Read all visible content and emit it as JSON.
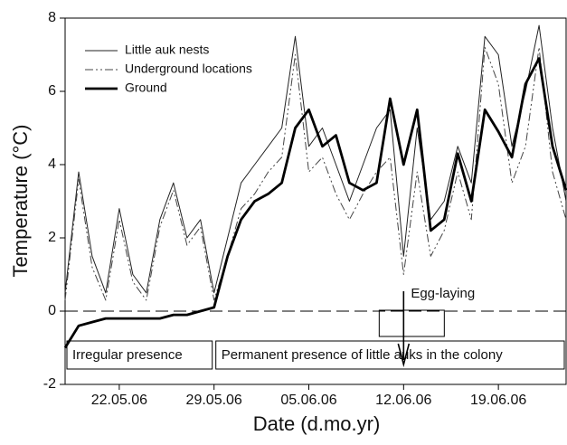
{
  "chart_data": {
    "type": "line",
    "x_label": "Date (d.mo.yr)",
    "y_label": "Temperature (°C)",
    "x": [
      "18.05.06",
      "19.05.06",
      "20.05.06",
      "21.05.06",
      "22.05.06",
      "23.05.06",
      "24.05.06",
      "25.05.06",
      "26.05.06",
      "27.05.06",
      "28.05.06",
      "29.05.06",
      "30.05.06",
      "31.05.06",
      "01.06.06",
      "02.06.06",
      "03.06.06",
      "04.06.06",
      "05.06.06",
      "06.06.06",
      "07.06.06",
      "08.06.06",
      "09.06.06",
      "10.06.06",
      "11.06.06",
      "12.06.06",
      "13.06.06",
      "14.06.06",
      "15.06.06",
      "16.06.06",
      "17.06.06",
      "18.06.06",
      "19.06.06",
      "20.06.06",
      "21.06.06",
      "22.06.06",
      "23.06.06",
      "24.06.06"
    ],
    "series": [
      {
        "name": "Little auk nests",
        "color": "#222222",
        "linestyle": "solid",
        "linewidth": 1,
        "values": [
          0.5,
          3.8,
          1.5,
          0.5,
          2.8,
          1.0,
          0.5,
          2.5,
          3.5,
          2.0,
          2.5,
          0.5,
          2.0,
          3.5,
          4.0,
          4.5,
          5.0,
          7.5,
          4.5,
          5.0,
          4.0,
          3.0,
          4.0,
          5.0,
          5.5,
          1.5,
          5.0,
          2.5,
          3.0,
          4.5,
          3.5,
          7.5,
          7.0,
          4.5,
          6.0,
          7.8,
          5.0,
          3.0
        ]
      },
      {
        "name": "Underground locations",
        "color": "#444444",
        "linestyle": "dashdot",
        "linewidth": 1,
        "values": [
          0.3,
          3.6,
          1.2,
          0.3,
          2.5,
          0.8,
          0.3,
          2.3,
          3.3,
          1.8,
          2.3,
          0.3,
          1.5,
          2.8,
          3.2,
          3.8,
          4.2,
          7.0,
          3.8,
          4.2,
          3.2,
          2.5,
          3.2,
          3.8,
          4.2,
          1.0,
          3.8,
          1.5,
          2.2,
          3.8,
          2.5,
          7.2,
          6.2,
          3.5,
          4.5,
          7.2,
          3.8,
          2.5
        ]
      },
      {
        "name": "Ground",
        "color": "#000000",
        "linestyle": "solid",
        "linewidth": 2.8,
        "values": [
          -1.0,
          -0.4,
          -0.3,
          -0.2,
          -0.2,
          -0.2,
          -0.2,
          -0.2,
          -0.1,
          -0.1,
          0.0,
          0.1,
          1.5,
          2.5,
          3.0,
          3.2,
          3.5,
          5.0,
          5.5,
          4.5,
          4.8,
          3.5,
          3.3,
          3.5,
          5.8,
          4.0,
          5.5,
          2.2,
          2.5,
          4.3,
          3.0,
          5.5,
          4.9,
          4.2,
          6.2,
          6.9,
          4.5,
          3.3
        ]
      }
    ],
    "xlim": [
      "18.05.06",
      "24.06.06"
    ],
    "xticks": [
      "22.05.06",
      "29.05.06",
      "05.06.06",
      "12.06.06",
      "19.06.06"
    ],
    "ylim": [
      -2,
      8
    ],
    "yticks": [
      -2,
      0,
      2,
      4,
      6,
      8
    ],
    "legend": "upper left",
    "reference_line": {
      "y": 0,
      "linestyle": "dashed"
    },
    "phases": [
      {
        "label": "Irregular presence",
        "start": "18.05.06",
        "end": "29.05.06"
      },
      {
        "label": "Permanent presence of little auks in the colony",
        "start": "29.05.06",
        "end": "24.06.06"
      }
    ],
    "event": {
      "label": "Egg-laying",
      "x": "12.06.06"
    }
  }
}
